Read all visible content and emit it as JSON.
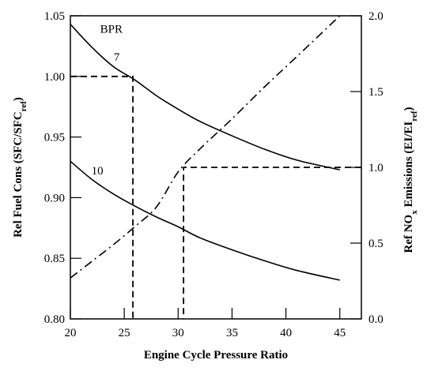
{
  "chart_data": {
    "type": "line",
    "title": "",
    "xlabel": "Engine Cycle Pressure Ratio",
    "ylabel": "Rel Fuel Cons (SFC/SFC",
    "ylabel_sub": "ref",
    "ylabel_close": ")",
    "y2label_pre": "Ref NO",
    "y2label_sub1": "x",
    "y2label_mid": " Emissions (EI/EI",
    "y2label_sub2": "ref",
    "y2label_close": ")",
    "xlim": [
      20,
      47
    ],
    "ylim": [
      0.8,
      1.05
    ],
    "y2lim": [
      0.0,
      2.0
    ],
    "xticks": [
      "20",
      "25",
      "30",
      "35",
      "40",
      "45"
    ],
    "yticks": [
      "0.80",
      "0.85",
      "0.90",
      "0.95",
      "1.00",
      "1.05"
    ],
    "y2ticks": [
      "0.0",
      "0.5",
      "1.0",
      "1.5",
      "2.0"
    ],
    "grid": false,
    "series": [
      {
        "name": "7",
        "axis": "left",
        "style": "solid",
        "x": [
          20,
          22,
          24,
          26,
          28,
          30,
          32,
          35,
          38,
          41,
          45
        ],
        "y": [
          1.043,
          1.024,
          1.008,
          0.997,
          0.984,
          0.973,
          0.963,
          0.951,
          0.94,
          0.931,
          0.923
        ]
      },
      {
        "name": "10",
        "axis": "left",
        "style": "solid",
        "x": [
          20,
          22,
          24,
          26,
          28,
          30,
          32,
          35,
          38,
          41,
          45
        ],
        "y": [
          0.93,
          0.915,
          0.903,
          0.893,
          0.884,
          0.876,
          0.867,
          0.857,
          0.848,
          0.84,
          0.832
        ]
      },
      {
        "name": "",
        "axis": "right",
        "style": "dashdot",
        "x": [
          20,
          22,
          24,
          26,
          28,
          30,
          32,
          35,
          38,
          41,
          45
        ],
        "y": [
          0.27,
          0.38,
          0.49,
          0.61,
          0.74,
          0.97,
          1.12,
          1.32,
          1.53,
          1.73,
          2.0
        ]
      }
    ],
    "reference_lines": [
      {
        "axis": "left",
        "x": [
          20,
          25.8,
          25.8
        ],
        "y": [
          1.0,
          1.0,
          0.8
        ]
      },
      {
        "axis": "right",
        "x": [
          47,
          30.5,
          30.5
        ],
        "y": [
          1.0,
          1.0,
          0.0
        ]
      }
    ],
    "annotations": [
      {
        "text": "BPR",
        "x": 23.8,
        "y": 1.036
      },
      {
        "text": "7",
        "x": 24.3,
        "y": 1.013
      },
      {
        "text": "10",
        "x": 22.5,
        "y": 0.919
      }
    ]
  }
}
